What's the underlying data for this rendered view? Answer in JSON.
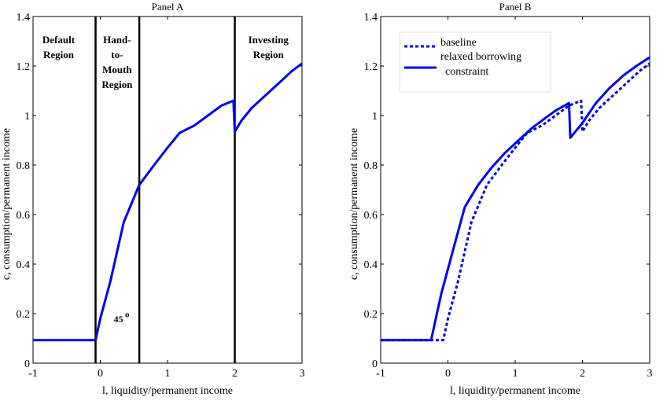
{
  "chart_data": [
    {
      "type": "line",
      "title": "Panel A",
      "xlabel": "l, liquidity/permanent income",
      "ylabel": "c, consumption/permanent income",
      "xlim": [
        -1,
        3
      ],
      "ylim": [
        0,
        1.4
      ],
      "xticks": [
        -1,
        0,
        1,
        2,
        3
      ],
      "yticks": [
        0,
        0.2,
        0.4,
        0.6,
        0.8,
        1,
        1.2,
        1.4
      ],
      "xtick_labels": [
        "-1",
        "0",
        "1",
        "2",
        "3"
      ],
      "ytick_labels": [
        "0",
        "0.2",
        "0.4",
        "0.6",
        "0.8",
        "1",
        "1.2",
        "1.4"
      ],
      "series": [
        {
          "style": "solid",
          "color": "#0000ee",
          "x": [
            -1,
            -0.07,
            0.0,
            0.15,
            0.35,
            0.58,
            0.8,
            1.0,
            1.18,
            1.4,
            1.6,
            1.8,
            1.98,
            2.0,
            2.1,
            2.25,
            2.45,
            2.65,
            2.85,
            3.0
          ],
          "y": [
            0.093,
            0.093,
            0.18,
            0.33,
            0.57,
            0.72,
            0.8,
            0.87,
            0.93,
            0.96,
            1.0,
            1.04,
            1.06,
            0.935,
            0.98,
            1.03,
            1.08,
            1.13,
            1.18,
            1.21
          ]
        }
      ],
      "vlines": [
        -0.07,
        0.58,
        2.0
      ],
      "annotations": [
        {
          "text": "45",
          "x": 0.27,
          "y": 0.165
        },
        {
          "text": "o",
          "x": 0.4,
          "y": 0.185
        }
      ],
      "regions": [
        {
          "lines": [
            "Default",
            "Region"
          ],
          "x": -0.62
        },
        {
          "lines": [
            "Hand-",
            "to-",
            "Mouth",
            "Region"
          ],
          "x": 0.25
        },
        {
          "lines": [
            "Investing",
            "Region"
          ],
          "x": 2.5
        }
      ]
    },
    {
      "type": "line",
      "title": "Panel B",
      "xlabel": "l, liquidity/permanent income",
      "ylabel": "c, consumption/permanent income",
      "xlim": [
        -1,
        3
      ],
      "ylim": [
        0,
        1.4
      ],
      "xticks": [
        -1,
        0,
        1,
        2,
        3
      ],
      "yticks": [
        0,
        0.2,
        0.4,
        0.6,
        0.8,
        1,
        1.2,
        1.4
      ],
      "xtick_labels": [
        "-1",
        "0",
        "1",
        "2",
        "3"
      ],
      "ytick_labels": [
        "0",
        "0.2",
        "0.4",
        "0.6",
        "0.8",
        "1",
        "1.2",
        "1.4"
      ],
      "series": [
        {
          "name": "baseline",
          "style": "dotted",
          "color": "#0000ee",
          "x": [
            -1,
            -0.07,
            0.0,
            0.15,
            0.35,
            0.58,
            0.8,
            1.0,
            1.18,
            1.4,
            1.6,
            1.8,
            1.98,
            2.0,
            2.1,
            2.25,
            2.45,
            2.65,
            2.85,
            3.0
          ],
          "y": [
            0.093,
            0.093,
            0.18,
            0.33,
            0.57,
            0.72,
            0.8,
            0.87,
            0.93,
            0.96,
            1.0,
            1.04,
            1.06,
            0.935,
            0.98,
            1.03,
            1.08,
            1.13,
            1.18,
            1.21
          ]
        },
        {
          "name": "relaxed borrowing constraint",
          "legend_lines": [
            "relaxed borrowing",
            "constraint"
          ],
          "style": "solid",
          "color": "#0000ee",
          "x": [
            -1,
            -0.25,
            -0.1,
            0.0,
            0.1,
            0.25,
            0.45,
            0.65,
            0.85,
            1.05,
            1.25,
            1.45,
            1.6,
            1.8,
            1.82,
            2.0,
            2.2,
            2.4,
            2.6,
            2.8,
            3.0
          ],
          "y": [
            0.093,
            0.093,
            0.28,
            0.38,
            0.48,
            0.63,
            0.72,
            0.79,
            0.85,
            0.9,
            0.95,
            0.99,
            1.02,
            1.05,
            0.91,
            0.97,
            1.05,
            1.11,
            1.16,
            1.2,
            1.235
          ]
        }
      ],
      "legend": "top-left"
    }
  ]
}
